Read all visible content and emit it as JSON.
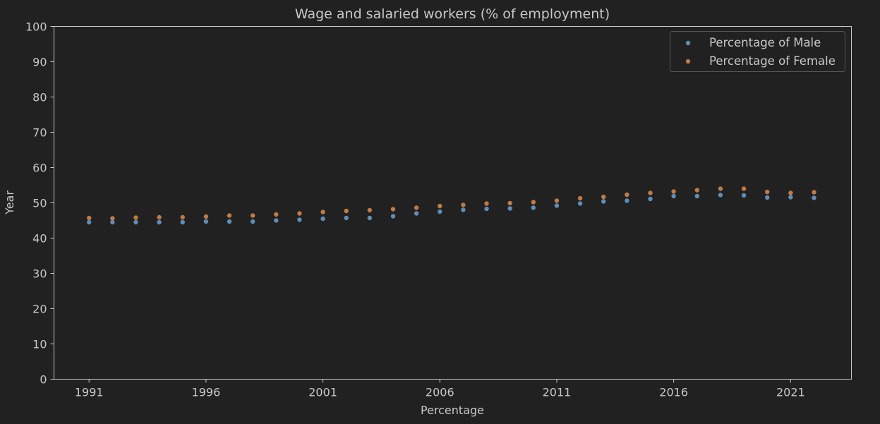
{
  "chart_data": {
    "type": "scatter",
    "title": "Wage and salaried workers (% of employment)",
    "xlabel": "Percentage",
    "ylabel": "Year",
    "x": [
      1991,
      1992,
      1993,
      1994,
      1995,
      1996,
      1997,
      1998,
      1999,
      2000,
      2001,
      2002,
      2003,
      2004,
      2005,
      2006,
      2007,
      2008,
      2009,
      2010,
      2011,
      2012,
      2013,
      2014,
      2015,
      2016,
      2017,
      2018,
      2019,
      2020,
      2021,
      2022
    ],
    "xticks": [
      1991,
      1996,
      2001,
      2006,
      2011,
      2016,
      2021
    ],
    "xlim": [
      1989.5,
      2023.6
    ],
    "ylim": [
      0,
      100
    ],
    "yticks": [
      0,
      10,
      20,
      30,
      40,
      50,
      60,
      70,
      80,
      90,
      100
    ],
    "grid": false,
    "legend_position": "top-right",
    "series": [
      {
        "name": "Percentage of Male",
        "color": "#5f8db8",
        "values": [
          44.5,
          44.5,
          44.5,
          44.5,
          44.5,
          44.7,
          44.7,
          44.7,
          45.0,
          45.2,
          45.5,
          45.7,
          45.7,
          46.2,
          47.0,
          47.5,
          48.0,
          48.3,
          48.4,
          48.6,
          49.2,
          49.8,
          50.4,
          50.6,
          51.1,
          51.9,
          51.9,
          52.2,
          52.1,
          51.5,
          51.6,
          51.4
        ]
      },
      {
        "name": "Percentage of Female",
        "color": "#c07a45",
        "values": [
          45.7,
          45.6,
          45.8,
          45.9,
          45.9,
          46.1,
          46.4,
          46.4,
          46.7,
          47.0,
          47.4,
          47.7,
          47.9,
          48.2,
          48.6,
          49.1,
          49.4,
          49.8,
          49.9,
          50.2,
          50.6,
          51.3,
          51.7,
          52.3,
          52.8,
          53.2,
          53.6,
          54.0,
          54.0,
          53.1,
          52.8,
          53.0
        ]
      }
    ]
  }
}
